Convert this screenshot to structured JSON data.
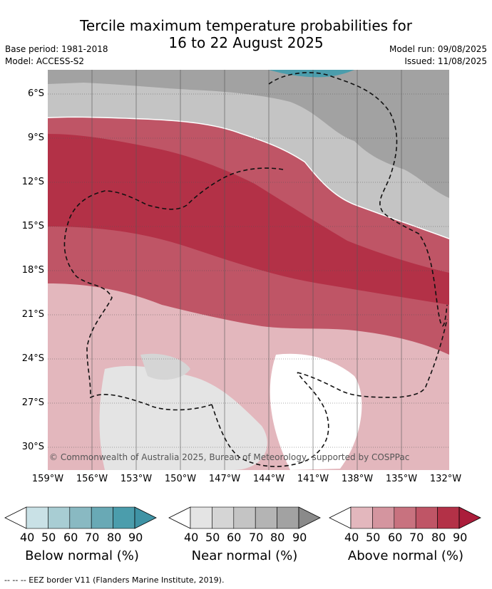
{
  "title": {
    "line1": "Tercile maximum temperature probabilities for",
    "line2": "16 to 22 August 2025"
  },
  "meta": {
    "base_period": "Base period: 1981-2018",
    "model": "Model: ACCESS-S2",
    "model_run": "Model run: 09/08/2025",
    "issued": "Issued: 11/08/2025"
  },
  "map": {
    "copyright": "© Commonwealth of Australia 2025, Bureau of Meteorology, supported by COSPPac",
    "lat_ticks": [
      "6°S",
      "9°S",
      "12°S",
      "15°S",
      "18°S",
      "21°S",
      "24°S",
      "27°S",
      "30°S"
    ],
    "lon_ticks": [
      "159°W",
      "156°W",
      "153°W",
      "150°W",
      "147°W",
      "144°W",
      "141°W",
      "138°W",
      "135°W",
      "132°W"
    ]
  },
  "colorbars": [
    {
      "name": "below",
      "title": "Below normal (%)",
      "labels": [
        "40",
        "50",
        "60",
        "70",
        "80",
        "90"
      ],
      "colors": [
        "#c9e1e6",
        "#a8cdd3",
        "#89b9c2",
        "#69a9b5",
        "#4b9dac"
      ],
      "arrow": "#3f93a5"
    },
    {
      "name": "near",
      "title": "Near normal (%)",
      "labels": [
        "40",
        "50",
        "60",
        "70",
        "80",
        "90"
      ],
      "colors": [
        "#e4e4e4",
        "#d5d5d5",
        "#c4c4c4",
        "#b4b4b4",
        "#a2a2a2"
      ],
      "arrow": "#8a8a8a"
    },
    {
      "name": "above",
      "title": "Above normal (%)",
      "labels": [
        "40",
        "50",
        "60",
        "70",
        "80",
        "90"
      ],
      "colors": [
        "#e3b7bd",
        "#d4959f",
        "#c8727f",
        "#bf5566",
        "#b33147"
      ],
      "arrow": "#ab1d3b"
    }
  ],
  "footer": "--  --  -- EEZ border V11 (Flanders Marine Institute, 2019)."
}
